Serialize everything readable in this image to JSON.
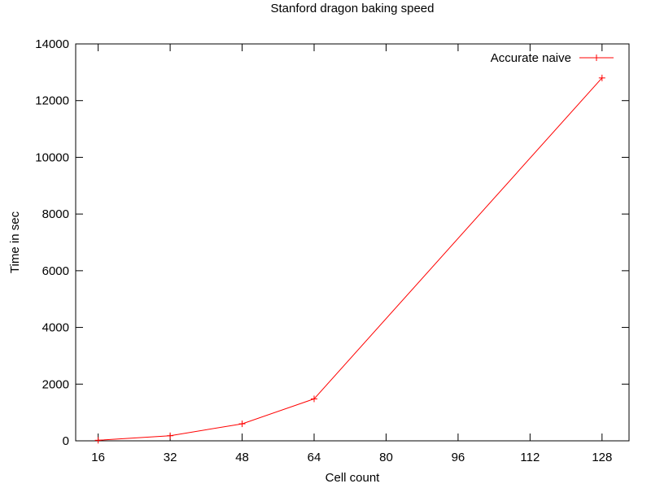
{
  "chart_data": {
    "type": "line",
    "title": "Stanford dragon baking speed",
    "xlabel": "Cell count",
    "ylabel": "Time in sec",
    "xlim": [
      11,
      134
    ],
    "ylim": [
      0,
      14000
    ],
    "x_ticks": [
      16,
      32,
      48,
      64,
      80,
      96,
      112,
      128
    ],
    "y_ticks": [
      0,
      2000,
      4000,
      6000,
      8000,
      10000,
      12000,
      14000
    ],
    "grid": false,
    "legend_position": "top-right",
    "series": [
      {
        "name": "Accurate naive",
        "color": "#ff0000",
        "marker": "plus",
        "x": [
          16,
          32,
          48,
          64,
          128
        ],
        "y": [
          20,
          180,
          600,
          1480,
          12800
        ]
      }
    ]
  }
}
